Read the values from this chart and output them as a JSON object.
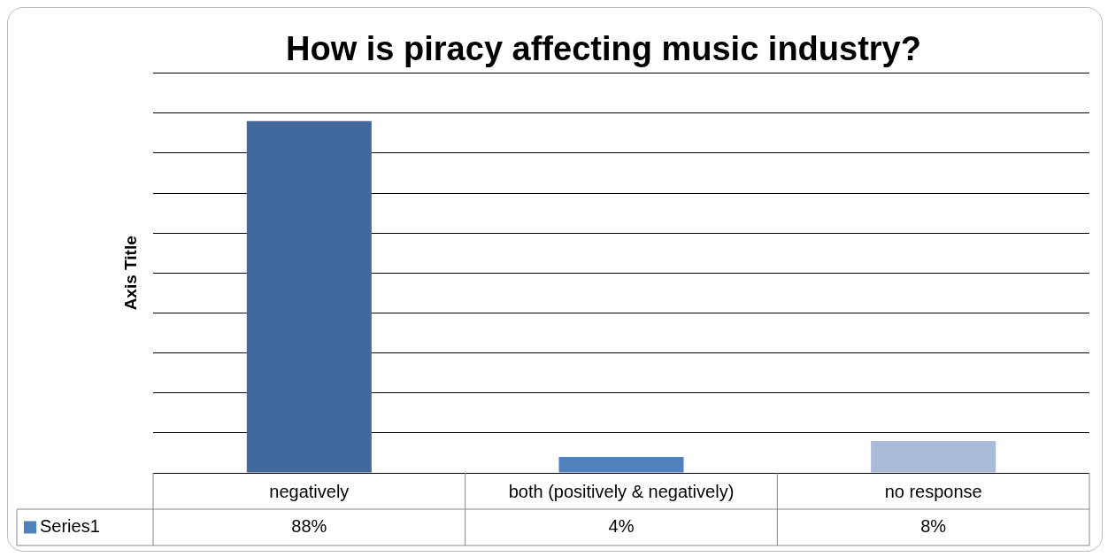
{
  "chart_data": {
    "type": "bar",
    "title": "How is piracy affecting music industry?",
    "ylabel": "Axis Title",
    "categories": [
      "negatively",
      "both (positively & negatively)",
      "no response"
    ],
    "series": [
      {
        "name": "Series1",
        "color": "#4f81bd",
        "colors": [
          "#41699b",
          "#4f81bd",
          "#a9bbd8"
        ],
        "values": [
          88,
          4,
          8
        ],
        "value_labels": [
          "88%",
          "4%",
          "8%"
        ]
      }
    ],
    "ylim": [
      0,
      100
    ],
    "yticks": [
      {
        "value": 0,
        "label": null
      },
      {
        "value": 10,
        "label": null
      },
      {
        "value": 20,
        "label": null
      },
      {
        "value": 30,
        "label": null
      },
      {
        "value": 40,
        "label": null
      },
      {
        "value": 50,
        "label": null
      },
      {
        "value": 60,
        "label": null
      },
      {
        "value": 70,
        "label": null
      },
      {
        "value": 80,
        "label": null
      },
      {
        "value": 90,
        "label": null
      },
      {
        "value": 100,
        "label": null
      }
    ],
    "grid": "y",
    "legend": "bottom left",
    "tick_labels": "x",
    "data_labels": true
  }
}
